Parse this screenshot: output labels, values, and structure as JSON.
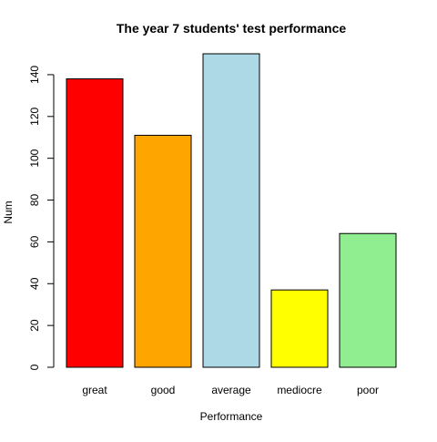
{
  "chart_data": {
    "type": "bar",
    "title": "The year 7 students' test performance",
    "xlabel": "Performance",
    "ylabel": "Num",
    "categories": [
      "great",
      "good",
      "average",
      "mediocre",
      "poor"
    ],
    "values": [
      138,
      111,
      150,
      37,
      64
    ],
    "colors": [
      "#ff0000",
      "#ffa500",
      "#add8e6",
      "#ffff00",
      "#90ee90"
    ],
    "ylim": [
      0,
      150
    ],
    "yticks": [
      0,
      20,
      40,
      60,
      80,
      100,
      120,
      140
    ],
    "grid": false,
    "legend": "none"
  }
}
